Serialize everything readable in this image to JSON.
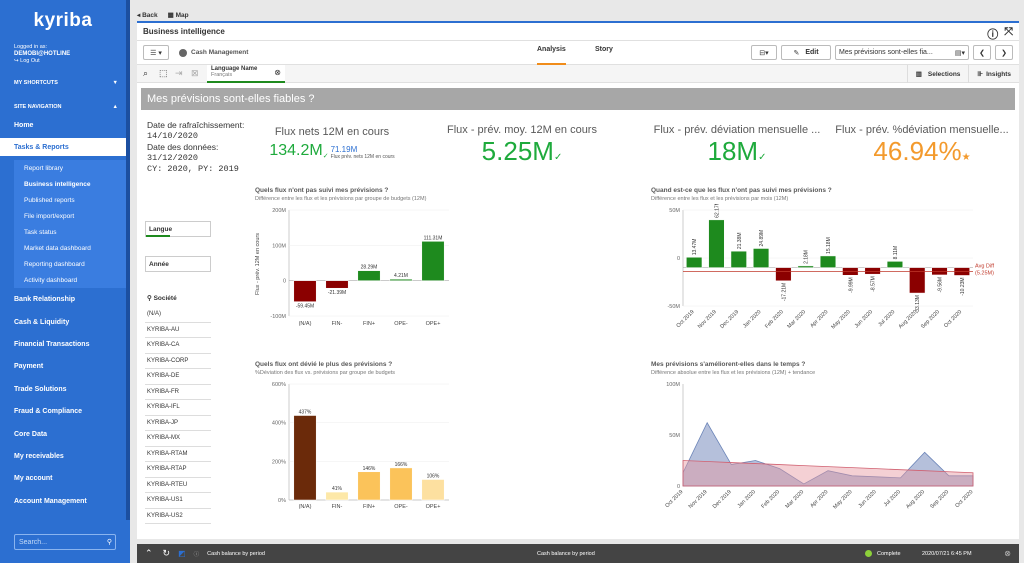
{
  "sidebar": {
    "logo": "kyriba",
    "logged_in_as": "Logged in as:",
    "user": "DEMOBI@HOTLINE",
    "logout": "Log Out",
    "shortcuts": "MY SHORTCUTS",
    "site_nav": "SITE NAVIGATION",
    "items_top": [
      {
        "label": "Home"
      },
      {
        "label": "Tasks & Reports"
      }
    ],
    "sub_items": [
      {
        "label": "Report library"
      },
      {
        "label": "Business intelligence"
      },
      {
        "label": "Published reports"
      },
      {
        "label": "File import/export"
      },
      {
        "label": "Task status"
      },
      {
        "label": "Market data dashboard"
      },
      {
        "label": "Reporting dashboard"
      },
      {
        "label": "Activity dashboard"
      }
    ],
    "items_bottom": [
      {
        "label": "Bank Relationship"
      },
      {
        "label": "Cash & Liquidity"
      },
      {
        "label": "Financial Transactions"
      },
      {
        "label": "Payment"
      },
      {
        "label": "Trade Solutions"
      },
      {
        "label": "Fraud & Compliance"
      },
      {
        "label": "Core Data"
      },
      {
        "label": "My receivables"
      },
      {
        "label": "My account"
      },
      {
        "label": "Account Management"
      }
    ],
    "search_placeholder": "Search..."
  },
  "topbar": {
    "back": "Back",
    "map": "Map"
  },
  "app": {
    "title": "Business intelligence",
    "app_name": "Cash Management",
    "tab_analysis": "Analysis",
    "tab_story": "Story",
    "edit": "Edit",
    "sheet_select": "Mes prévisions sont-elles fia...",
    "selections": "Selections",
    "insights": "Insights",
    "filter_name": "Language Name",
    "filter_value": "Français"
  },
  "sheet": {
    "title": "Mes prévisions sont-elles fiables ?",
    "info": {
      "refresh_label": "Date de rafraîchissement:",
      "refresh_date": "14/10/2020",
      "data_label": "Date des données:",
      "data_date": "31/12/2020",
      "cy": "CY: 2020, PY: 2019"
    },
    "kpi1": {
      "title": "Flux nets 12M en cours",
      "value": "134.2M",
      "delta": "71.19M",
      "delta_label": "Flux prév. nets 12M en cours"
    },
    "kpi2": {
      "title": "Flux - prév. moy. 12M en cours",
      "value": "5.25M"
    },
    "kpi3": {
      "title": "Flux - prév. déviation mensuelle ...",
      "value": "18M"
    },
    "kpi4": {
      "title": "Flux - prév. %déviation mensuelle...",
      "value": "46.94%"
    },
    "filters": {
      "langue": "Langue",
      "annee": "Année",
      "societe": "Société",
      "societes": [
        "(N/A)",
        "KYRIBA-AU",
        "KYRIBA-CA",
        "KYRIBA-CORP",
        "KYRIBA-DE",
        "KYRIBA-FR",
        "KYRIBA-IFL",
        "KYRIBA-JP",
        "KYRIBA-MX",
        "KYRIBA-RTAM",
        "KYRIBA-RTAP",
        "KYRIBA-RTEU",
        "KYRIBA-US1",
        "KYRIBA-US2"
      ]
    },
    "c1": {
      "title": "Quels flux n'ont pas suivi mes prévisions ?",
      "subtitle": "Différence entre les flux et les prévisions par groupe de budgets (12M)",
      "ylabel": "Flux - prév. 12M en cours"
    },
    "c2": {
      "title": "Quand est-ce que les flux n'ont pas suivi mes prévisions ?",
      "subtitle": "Différence entre les flux et les prévisions par mois (12M)",
      "avg_label": "Avg Diff",
      "avg_value": "(5.25M)"
    },
    "c3": {
      "title": "Quels flux ont dévié le plus des prévisions ?",
      "subtitle": "%Déviation des flux vs. prévisions par groupe de budgets"
    },
    "c4": {
      "title": "Mes prévisions s'améliorent-elles dans le temps ?",
      "subtitle": "Différence absolue entre les flux et les prévisions (12M) + tendance"
    }
  },
  "bottombar": {
    "left": "Cash balance by period",
    "center": "Cash balance by period",
    "status": "Complete",
    "time": "2020/07/21 6:45 PM"
  },
  "chart_data": [
    {
      "type": "bar",
      "title": "Quels flux n'ont pas suivi mes prévisions ?",
      "categories": [
        "(N/A)",
        "FIN-",
        "FIN+",
        "OPE-",
        "OPE+"
      ],
      "values": [
        -59.45,
        -21.39,
        28.29,
        4.21,
        111.31
      ],
      "labels": [
        "-59.45M",
        "-21.39M",
        "28.29M",
        "4.21M",
        "111.31M"
      ],
      "ylim": [
        -100,
        200
      ],
      "ticks": [
        "-100M",
        "0",
        "100M",
        "200M"
      ],
      "colors": [
        "#8b0000",
        "#8b0000",
        "#1e8a1e",
        "#1e8a1e",
        "#1e8a1e"
      ]
    },
    {
      "type": "bar",
      "title": "Quand est-ce que les flux n'ont pas suivi mes prévisions ?",
      "categories": [
        "Oct 2019",
        "Nov 2019",
        "Dec 2019",
        "Jan 2020",
        "Feb 2020",
        "Mar 2020",
        "Apr 2020",
        "May 2020",
        "Jun 2020",
        "Jul 2020",
        "Aug 2020",
        "Sep 2020",
        "Oct 2020"
      ],
      "values": [
        13.47,
        62.17,
        21.38,
        24.89,
        -17.21,
        2.18,
        15.18,
        -9.99,
        -8.57,
        8.11,
        -33.13,
        -9.56,
        -10.23
      ],
      "labels": [
        "13.47M",
        "62.17M",
        "21.38M",
        "24.89M",
        "-17.21M",
        "2.18M",
        "15.18M",
        "-9.99M",
        "-8.57M",
        "8.11M",
        "-33.13M",
        "-9.56M",
        "-10.23M"
      ],
      "ylim": [
        -50,
        75
      ],
      "ticks": [
        "-50M",
        "0",
        "50M"
      ],
      "avg": -5.25
    },
    {
      "type": "bar",
      "title": "Quels flux ont dévié le plus des prévisions ?",
      "categories": [
        "(N/A)",
        "FIN-",
        "FIN+",
        "OPE-",
        "OPE+"
      ],
      "values": [
        437,
        41,
        146,
        166,
        106
      ],
      "labels": [
        "437%",
        "41%",
        "146%",
        "166%",
        "106%"
      ],
      "ylim": [
        0,
        600
      ],
      "ticks": [
        "0%",
        "200%",
        "400%",
        "600%"
      ],
      "colors": [
        "#6b2a0a",
        "#fde8a8",
        "#fbc35a",
        "#fbc35a",
        "#fde0a0"
      ]
    },
    {
      "type": "area",
      "title": "Mes prévisions s'améliorent-elles dans le temps ?",
      "categories": [
        "Oct 2019",
        "Nov 2019",
        "Dec 2019",
        "Jan 2020",
        "Feb 2020",
        "Mar 2020",
        "Apr 2020",
        "May 2020",
        "Jun 2020",
        "Jul 2020",
        "Aug 2020",
        "Sep 2020",
        "Oct 2020"
      ],
      "series": [
        {
          "values": [
            13,
            62,
            21,
            25,
            17,
            2,
            15,
            10,
            9,
            8,
            33,
            10,
            10
          ]
        },
        {
          "values": [
            25,
            24,
            23,
            22,
            21,
            20,
            19,
            18,
            17,
            16,
            15,
            14,
            13
          ]
        }
      ],
      "ylim": [
        0,
        100
      ],
      "ticks": [
        "0",
        "50M",
        "100M"
      ]
    }
  ]
}
